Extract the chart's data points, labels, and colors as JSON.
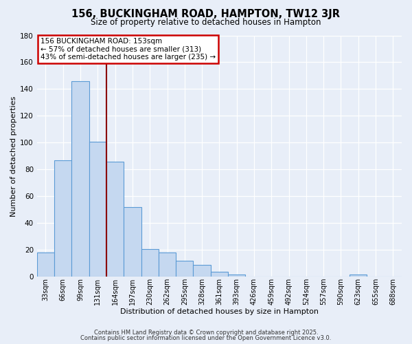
{
  "title": "156, BUCKINGHAM ROAD, HAMPTON, TW12 3JR",
  "subtitle": "Size of property relative to detached houses in Hampton",
  "xlabel": "Distribution of detached houses by size in Hampton",
  "ylabel": "Number of detached properties",
  "bar_labels": [
    "33sqm",
    "66sqm",
    "99sqm",
    "131sqm",
    "164sqm",
    "197sqm",
    "230sqm",
    "262sqm",
    "295sqm",
    "328sqm",
    "361sqm",
    "393sqm",
    "426sqm",
    "459sqm",
    "492sqm",
    "524sqm",
    "557sqm",
    "590sqm",
    "623sqm",
    "655sqm",
    "688sqm"
  ],
  "bar_values": [
    18,
    87,
    146,
    101,
    86,
    52,
    21,
    18,
    12,
    9,
    4,
    2,
    0,
    0,
    0,
    0,
    0,
    0,
    2,
    0,
    0
  ],
  "bar_color": "#c5d8f0",
  "bar_edge_color": "#5b9bd5",
  "bg_color": "#e8eef8",
  "grid_color": "#d0d8e8",
  "vline_color": "#8b0000",
  "vline_pos": 3.5,
  "annotation_lines": [
    "156 BUCKINGHAM ROAD: 153sqm",
    "← 57% of detached houses are smaller (313)",
    "43% of semi-detached houses are larger (235) →"
  ],
  "annotation_box_color": "#ffffff",
  "annotation_box_edge": "#cc0000",
  "ylim": [
    0,
    180
  ],
  "yticks": [
    0,
    20,
    40,
    60,
    80,
    100,
    120,
    140,
    160,
    180
  ],
  "footer_line1": "Contains HM Land Registry data © Crown copyright and database right 2025.",
  "footer_line2": "Contains public sector information licensed under the Open Government Licence v3.0."
}
